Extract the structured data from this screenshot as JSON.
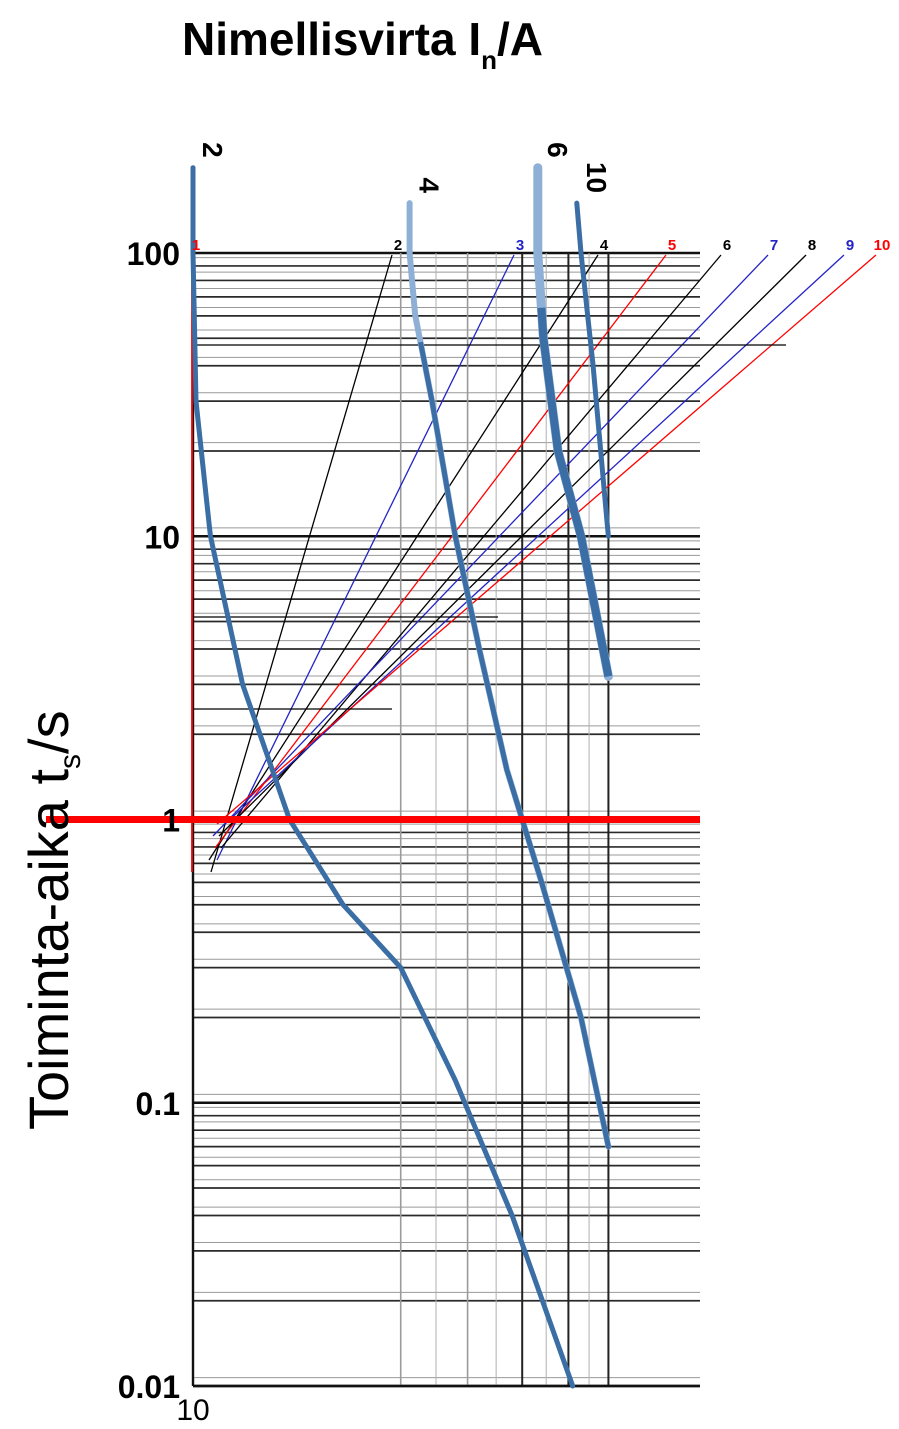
{
  "chart_data": {
    "type": "line",
    "title": {
      "main": "Nimellisvirta I",
      "sub": "n",
      "suffix": "/A"
    },
    "ylabel": {
      "main": "Toiminta-aika t",
      "sub": "s",
      "suffix": "/s"
    },
    "y_scale": "log",
    "ylim": [
      0.01,
      100
    ],
    "yticks": [
      {
        "value": 100,
        "label": "100"
      },
      {
        "value": 10,
        "label": "10"
      },
      {
        "value": 1,
        "label": "1"
      },
      {
        "value": 0.1,
        "label": "0.1"
      },
      {
        "value": 0.01,
        "label": "0.01"
      }
    ],
    "x_scale": "log",
    "xlim": [
      10,
      40
    ],
    "xticks": [
      {
        "value": 10,
        "label": "10"
      }
    ],
    "grid": true,
    "series": [
      {
        "name": "2",
        "x": [
          10,
          10,
          10.1,
          10.6,
          11.8,
          13.8,
          16.5,
          20,
          24,
          29,
          35.5
        ],
        "y": [
          200,
          100,
          30,
          10,
          3,
          1,
          0.5,
          0.3,
          0.12,
          0.04,
          0.01
        ]
      },
      {
        "name": "4",
        "x": [
          20.6,
          20.6,
          21,
          22.2,
          24,
          26,
          28.5,
          32,
          36.5,
          40
        ],
        "y": [
          150,
          100,
          60,
          30,
          10,
          4,
          1.5,
          0.6,
          0.2,
          0.07
        ]
      },
      {
        "name": "6",
        "x": [
          31.6,
          31.6,
          32.2,
          33.8,
          36.5,
          40,
          40
        ],
        "y": [
          200,
          100,
          50,
          20,
          10,
          3.2,
          3.2
        ]
      },
      {
        "name": "10",
        "x": [
          36,
          36.5,
          38,
          40
        ],
        "y": [
          150,
          100,
          40,
          10
        ]
      }
    ],
    "curve_labels": [
      "2",
      "4",
      "6",
      "10"
    ],
    "highlight_line": {
      "y": 1
    },
    "scale_lines": [
      {
        "label": "1",
        "color": "#ff0000"
      },
      {
        "label": "2",
        "color": "#000000"
      },
      {
        "label": "3",
        "color": "#2323c8"
      },
      {
        "label": "4",
        "color": "#000000"
      },
      {
        "label": "5",
        "color": "#ff0000"
      },
      {
        "label": "6",
        "color": "#000000"
      },
      {
        "label": "7",
        "color": "#2323c8"
      },
      {
        "label": "8",
        "color": "#000000"
      },
      {
        "label": "9",
        "color": "#2323c8"
      },
      {
        "label": "10",
        "color": "#ff0000"
      }
    ],
    "colors": {
      "curve": "#3a6ea5",
      "curve_light": "#8fb0d6",
      "highlight": "#ff0000"
    }
  }
}
